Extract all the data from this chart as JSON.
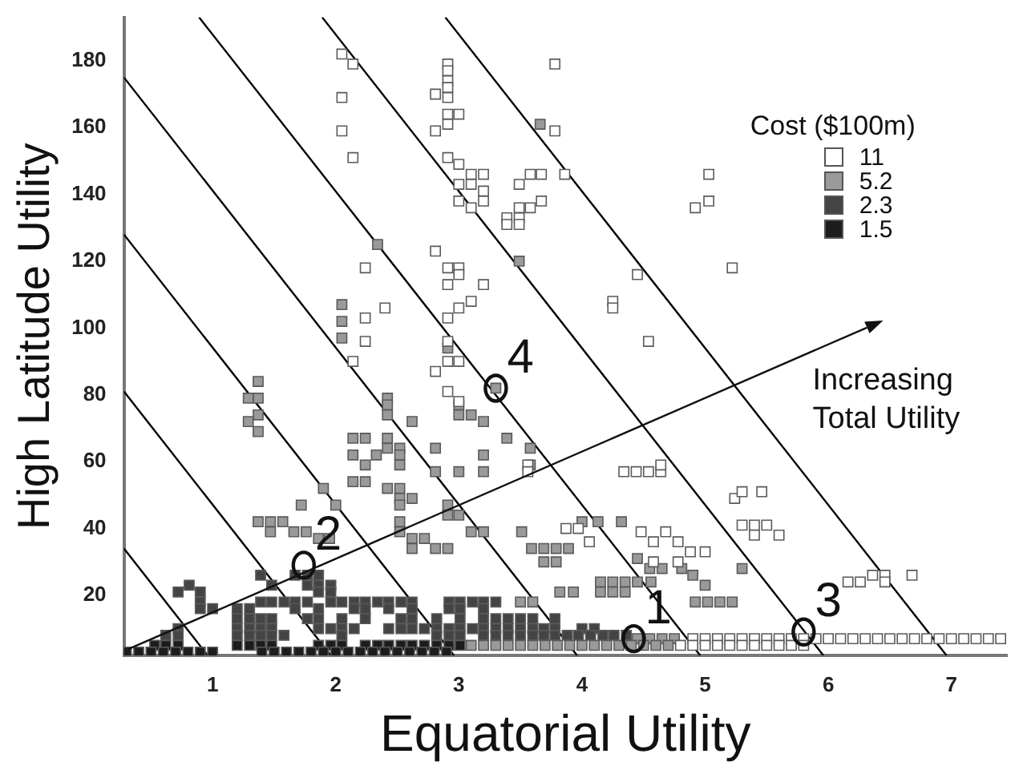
{
  "chart_data": {
    "type": "scatter",
    "xlabel": "Equatorial Utility",
    "ylabel": "High Latitude Utility",
    "legend_title": "Cost ($100m)",
    "xlim": [
      0.28,
      7.45
    ],
    "ylim": [
      2,
      193
    ],
    "xticks": [
      1,
      2,
      3,
      4,
      5,
      6,
      7
    ],
    "yticks": [
      20,
      40,
      60,
      80,
      100,
      120,
      140,
      160,
      180
    ],
    "grid": false,
    "legend": "top right",
    "marker": "square",
    "annotations": [
      "Increasing Total Utility",
      {
        "text": "1",
        "x": 4.42,
        "y": 7
      },
      {
        "text": "2",
        "x": 1.74,
        "y": 29
      },
      {
        "text": "3",
        "x": 5.8,
        "y": 9
      },
      {
        "text": "4",
        "x": 3.3,
        "y": 82
      }
    ],
    "series": [
      {
        "name": "11",
        "color": "#ffffff",
        "x": [
          2.05,
          2.14,
          2.05,
          2.05,
          2.14,
          2.91,
          2.91,
          2.91,
          2.91,
          2.81,
          2.91,
          2.91,
          3.0,
          2.91,
          2.81,
          2.91,
          3.0,
          3.1,
          3.2,
          3.0,
          3.1,
          3.2,
          3.0,
          3.2,
          3.1,
          3.39,
          3.49,
          3.39,
          3.49,
          3.49,
          3.58,
          3.58,
          3.49,
          3.78,
          2.81,
          2.24,
          2.91,
          3.0,
          3.0,
          2.91,
          3.2,
          3.1,
          3.0,
          2.4,
          2.24,
          2.91,
          2.24,
          2.91,
          3.78,
          3.67,
          3.86,
          3.67,
          5.03,
          5.03,
          4.92,
          5.22,
          4.45,
          4.25,
          4.25,
          4.54,
          2.14,
          2.91,
          3.0,
          2.81,
          2.91,
          3.0,
          3.56,
          3.56,
          4.34,
          4.44,
          4.54,
          4.64,
          4.64,
          5.24,
          5.3,
          5.46,
          3.87,
          3.97,
          4.06,
          4.48,
          4.58,
          4.68,
          4.78,
          4.88,
          5.0,
          4.58,
          4.78,
          5.3,
          5.4,
          5.5,
          5.6,
          5.4,
          6.16,
          6.26,
          6.36,
          6.46,
          6.46,
          6.68,
          4.9,
          5.0,
          5.1,
          5.2,
          5.3,
          5.4,
          5.5,
          5.6,
          5.7,
          5.8,
          5.9,
          6.0,
          6.1,
          6.2,
          6.3,
          6.4,
          6.5,
          6.6,
          6.7,
          6.8,
          6.9,
          7.0,
          7.1,
          7.2,
          7.3,
          7.4,
          4.8,
          4.9,
          5.0,
          5.1,
          5.2,
          5.3,
          5.4,
          5.5,
          5.6,
          5.7,
          5.8
        ],
        "values": [
          182,
          179,
          169,
          159,
          151,
          179,
          177,
          174,
          172,
          170,
          169,
          164,
          164,
          161,
          159,
          151,
          149,
          146,
          146,
          143,
          143,
          141,
          138,
          138,
          136,
          133,
          133,
          131,
          131,
          143,
          146,
          136,
          136,
          179,
          123,
          118,
          118,
          118,
          116,
          113,
          113,
          108,
          106,
          106,
          103,
          103,
          96,
          96,
          159,
          146,
          146,
          138,
          146,
          138,
          136,
          118,
          116,
          108,
          106,
          96,
          90,
          90,
          90,
          87,
          81,
          78,
          59,
          57,
          57,
          57,
          57,
          57,
          59,
          49,
          51,
          51,
          40,
          40,
          36,
          39,
          36,
          39,
          36,
          33,
          33,
          30,
          30,
          41,
          41,
          41,
          38,
          38,
          24,
          24,
          26,
          26,
          24,
          26,
          7,
          7,
          7,
          7,
          7,
          7,
          7,
          7,
          7,
          7,
          7,
          7,
          7,
          7,
          7,
          7,
          7,
          7,
          7,
          7,
          7,
          7,
          7,
          7,
          7,
          7,
          5,
          5,
          5,
          5,
          5,
          5,
          5,
          5,
          5,
          5,
          5
        ]
      },
      {
        "name": "5.2",
        "color": "#9a9a9a",
        "x": [
          1.37,
          1.29,
          1.37,
          1.37,
          1.29,
          1.37,
          2.42,
          2.42,
          2.42,
          2.62,
          2.14,
          2.24,
          2.24,
          2.14,
          2.33,
          2.42,
          2.42,
          2.52,
          2.52,
          2.52,
          2.14,
          2.24,
          2.42,
          2.52,
          2.52,
          2.62,
          2.52,
          2.81,
          2.81,
          3.0,
          3.2,
          3.39,
          3.2,
          3.2,
          3.58,
          3.58,
          1.9,
          1.72,
          2.0,
          1.37,
          1.47,
          1.57,
          1.47,
          1.66,
          1.76,
          1.86,
          1.95,
          2.52,
          2.52,
          2.62,
          2.72,
          2.62,
          2.81,
          2.91,
          2.91,
          2.91,
          3.0,
          3.1,
          3.2,
          3.3,
          3.0,
          3.1,
          3.0,
          2.05,
          2.05,
          2.05,
          2.34,
          2.91,
          3.66,
          3.49,
          3.51,
          3.59,
          3.69,
          3.79,
          3.89,
          3.69,
          3.79,
          4.0,
          4.13,
          4.32,
          4.45,
          4.55,
          4.65,
          4.81,
          4.9,
          5.0,
          5.3,
          4.15,
          4.25,
          4.35,
          4.45,
          4.56,
          4.15,
          4.25,
          4.35,
          3.82,
          3.93,
          4.92,
          5.02,
          5.12,
          5.22,
          3.5,
          3.6,
          4.45,
          4.55,
          4.65,
          4.75,
          3.1,
          3.2,
          3.3,
          3.4,
          3.5,
          3.6,
          3.7,
          3.8,
          3.9,
          4.0,
          4.1,
          4.2,
          4.3,
          4.4,
          4.5,
          4.6,
          4.7
        ],
        "values": [
          84,
          79,
          79,
          74,
          72,
          69,
          79,
          77,
          74,
          72,
          67,
          67,
          59,
          62,
          62,
          67,
          64,
          64,
          62,
          59,
          54,
          54,
          52,
          52,
          49,
          49,
          47,
          64,
          57,
          57,
          72,
          67,
          62,
          57,
          64,
          59,
          52,
          47,
          47,
          42,
          42,
          42,
          39,
          39,
          39,
          37,
          37,
          42,
          39,
          37,
          37,
          34,
          34,
          34,
          47,
          44,
          44,
          39,
          39,
          82,
          77,
          74,
          74,
          107,
          102,
          97,
          125,
          94,
          161,
          120,
          39,
          34,
          34,
          34,
          34,
          30,
          30,
          42,
          42,
          42,
          31,
          28,
          28,
          28,
          26,
          23,
          28,
          24,
          24,
          24,
          24,
          24,
          21,
          21,
          21,
          21,
          21,
          18,
          18,
          18,
          18,
          18,
          18,
          7,
          7,
          7,
          7,
          5,
          5,
          5,
          5,
          5,
          5,
          5,
          5,
          5,
          5,
          5,
          5,
          5,
          5,
          5,
          5,
          5
        ]
      },
      {
        "name": "2.3",
        "color": "#444444",
        "x": [
          1.39,
          1.67,
          1.77,
          1.86,
          0.81,
          1.48,
          1.77,
          1.86,
          1.96,
          0.72,
          0.9,
          1.86,
          1.96,
          0.9,
          1.39,
          1.48,
          1.58,
          1.67,
          1.77,
          1.96,
          2.05,
          2.15,
          2.24,
          2.34,
          2.43,
          2.53,
          2.62,
          2.92,
          3.01,
          3.11,
          3.2,
          3.3,
          0.9,
          1.0,
          1.2,
          1.3,
          1.67,
          1.86,
          2.15,
          2.24,
          2.43,
          2.62,
          2.92,
          3.01,
          3.2,
          1.2,
          1.3,
          1.39,
          1.48,
          1.77,
          1.86,
          2.05,
          2.24,
          2.53,
          2.62,
          2.82,
          3.01,
          3.2,
          3.3,
          3.4,
          3.5,
          3.6,
          3.78,
          0.72,
          1.2,
          1.3,
          1.39,
          1.48,
          1.86,
          1.96,
          2.05,
          2.15,
          2.43,
          2.53,
          2.62,
          2.72,
          2.82,
          2.92,
          3.01,
          3.11,
          3.2,
          3.3,
          3.4,
          3.5,
          3.6,
          3.69,
          3.78,
          4.0,
          4.1,
          0.62,
          0.72,
          1.2,
          1.3,
          1.39,
          1.48,
          1.58,
          2.05,
          2.82,
          2.92,
          3.01,
          3.2,
          3.3,
          3.4,
          3.5,
          3.6,
          3.69,
          3.78,
          3.88,
          3.97,
          4.07,
          4.17,
          4.26,
          4.36
        ],
        "values": [
          26,
          26,
          26,
          26,
          23,
          23,
          23,
          23,
          23,
          21,
          21,
          21,
          21,
          18,
          18,
          18,
          18,
          18,
          18,
          18,
          18,
          18,
          18,
          18,
          18,
          18,
          18,
          18,
          18,
          18,
          18,
          18,
          16,
          16,
          16,
          16,
          16,
          16,
          16,
          16,
          16,
          16,
          16,
          16,
          16,
          13,
          13,
          13,
          13,
          13,
          13,
          13,
          13,
          13,
          13,
          13,
          13,
          13,
          13,
          13,
          13,
          13,
          13,
          10,
          10,
          10,
          10,
          10,
          10,
          10,
          10,
          10,
          10,
          10,
          10,
          10,
          10,
          10,
          10,
          10,
          10,
          10,
          10,
          10,
          10,
          10,
          10,
          10,
          10,
          8,
          8,
          8,
          8,
          8,
          8,
          8,
          8,
          8,
          8,
          8,
          8,
          8,
          8,
          8,
          8,
          8,
          8,
          8,
          8,
          8,
          8,
          8,
          8
        ]
      },
      {
        "name": "1.5",
        "color": "#1c1c1c",
        "x": [
          0.53,
          0.62,
          0.72,
          1.2,
          1.3,
          1.39,
          1.48,
          1.86,
          1.96,
          2.05,
          2.24,
          2.34,
          2.43,
          2.53,
          2.62,
          2.72,
          2.82,
          2.92,
          3.01,
          0.3,
          0.4,
          0.5,
          0.6,
          0.7,
          0.8,
          0.9,
          1.0,
          1.4,
          1.5,
          1.6,
          1.7,
          1.8,
          1.9,
          2.0,
          2.1,
          2.2,
          2.3,
          2.4,
          2.5,
          2.6,
          2.7,
          2.8,
          2.9
        ],
        "values": [
          5,
          5,
          5,
          5,
          5,
          5,
          5,
          5,
          5,
          5,
          5,
          5,
          5,
          5,
          5,
          5,
          5,
          5,
          5,
          3,
          3,
          3,
          3,
          3,
          3,
          3,
          3,
          3,
          3,
          3,
          3,
          3,
          3,
          3,
          3,
          3,
          3,
          3,
          3,
          3,
          3,
          3,
          3
        ]
      },
      {
        "type": "line",
        "marker": "none",
        "color": "#000000",
        "x": [
          0.28,
          0.96
        ],
        "values": [
          34,
          2
        ]
      },
      {
        "type": "line",
        "marker": "none",
        "color": "#000000",
        "x": [
          0.28,
          1.96
        ],
        "values": [
          81,
          2
        ]
      },
      {
        "type": "line",
        "marker": "none",
        "color": "#000000",
        "x": [
          0.28,
          2.96
        ],
        "values": [
          128,
          2
        ]
      },
      {
        "type": "line",
        "marker": "none",
        "color": "#000000",
        "x": [
          0.28,
          3.96
        ],
        "values": [
          175,
          2
        ]
      },
      {
        "type": "line",
        "marker": "none",
        "color": "#000000",
        "x": [
          0.89,
          4.96
        ],
        "values": [
          193,
          2
        ]
      },
      {
        "type": "line",
        "marker": "none",
        "color": "#000000",
        "x": [
          1.89,
          5.96
        ],
        "values": [
          193,
          2
        ]
      },
      {
        "type": "line",
        "marker": "none",
        "color": "#000000",
        "x": [
          2.89,
          6.96
        ],
        "values": [
          193,
          2
        ]
      }
    ]
  }
}
